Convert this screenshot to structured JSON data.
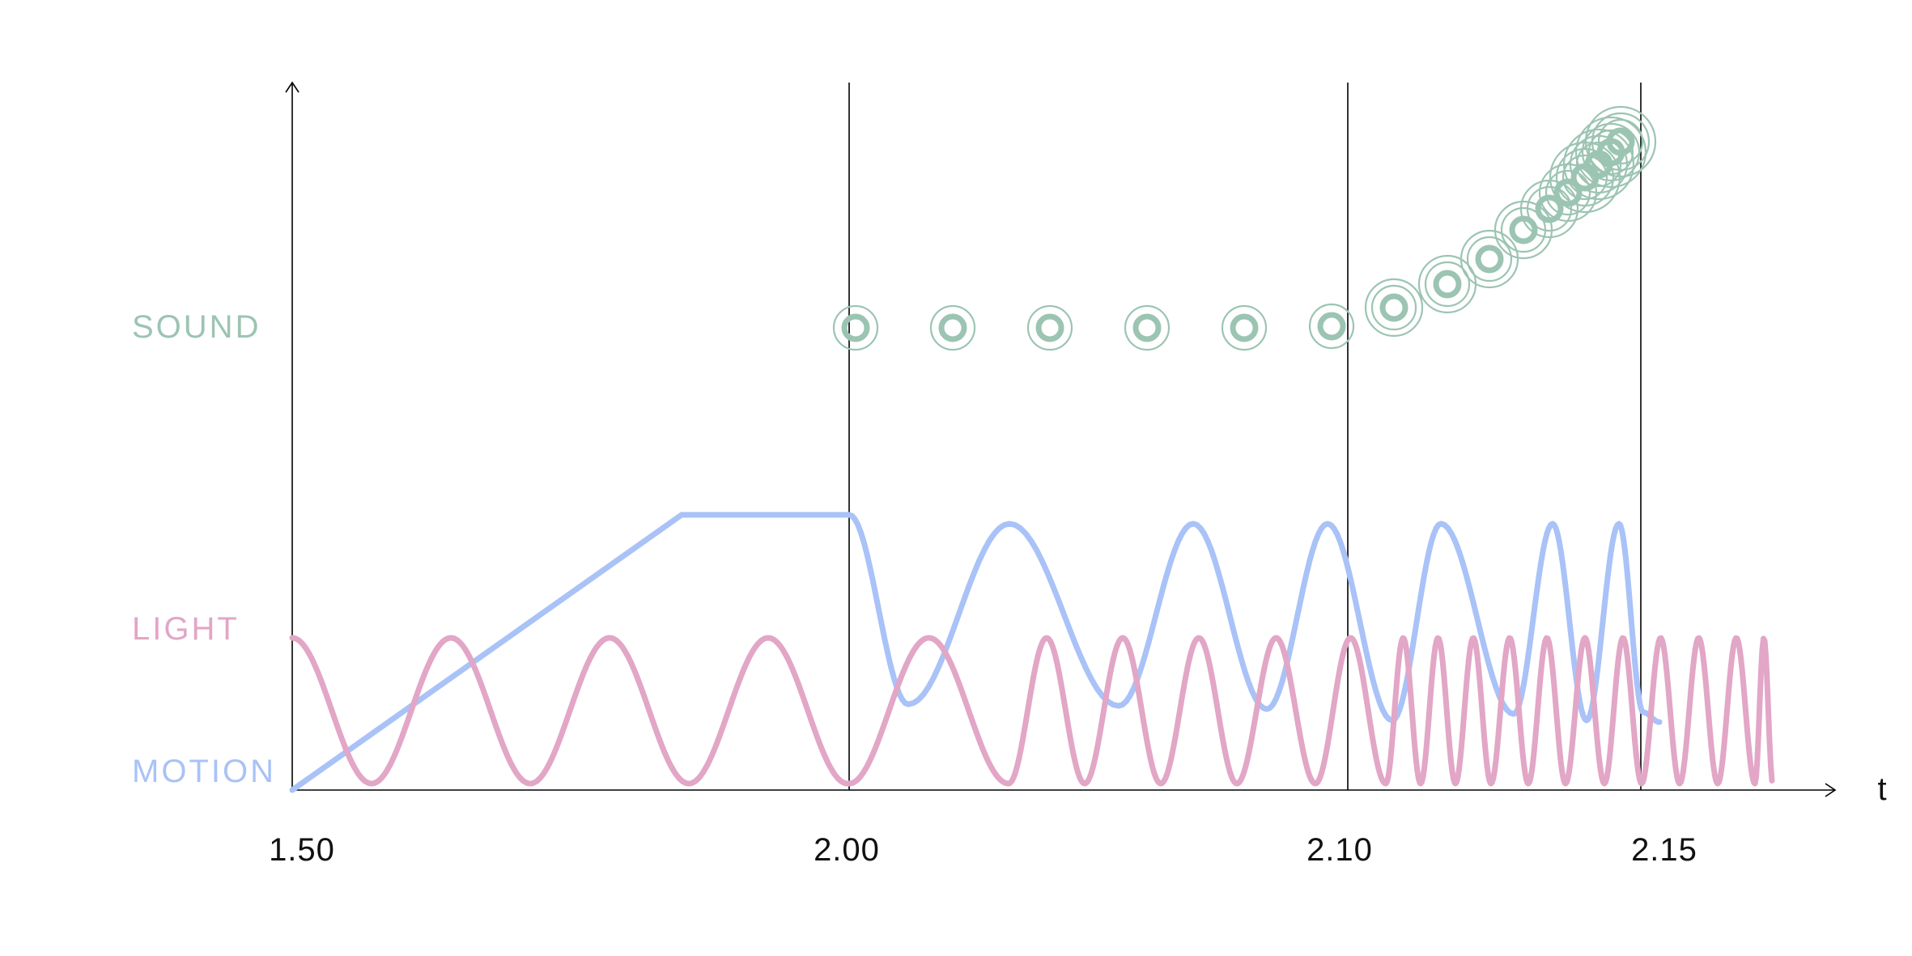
{
  "diagram": {
    "rows": {
      "sound": {
        "label": "SOUND",
        "color": "#9cc4b3"
      },
      "light": {
        "label": "LIGHT",
        "color": "#e2a6c6"
      },
      "motion": {
        "label": "MOTION",
        "color": "#a9c2f7"
      }
    },
    "time_axis": {
      "label": "t",
      "ticks": [
        "1.50",
        "2.00",
        "2.10",
        "2.15"
      ]
    }
  }
}
